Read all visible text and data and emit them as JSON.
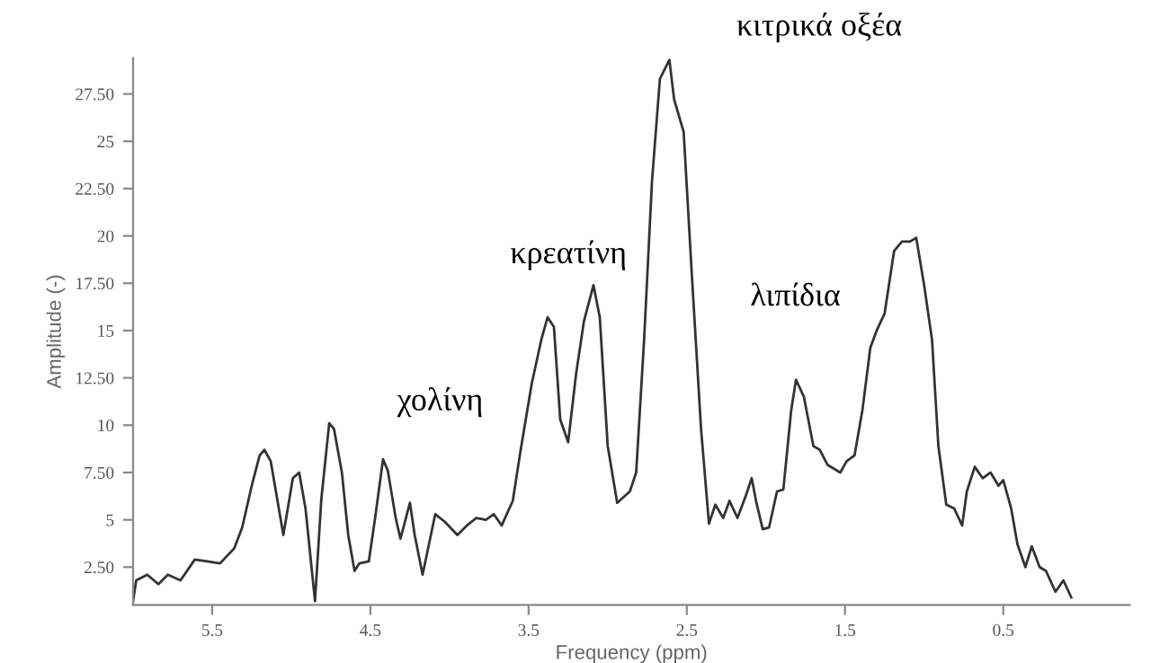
{
  "chart_data": {
    "type": "line",
    "xlabel": "Frequency (ppm)",
    "ylabel": "Amplitude (-)",
    "x": [
      6.0,
      5.98,
      5.91,
      5.84,
      5.78,
      5.7,
      5.61,
      5.53,
      5.45,
      5.36,
      5.31,
      5.25,
      5.2,
      5.17,
      5.13,
      5.05,
      4.99,
      4.95,
      4.91,
      4.85,
      4.81,
      4.76,
      4.73,
      4.68,
      4.64,
      4.6,
      4.57,
      4.51,
      4.47,
      4.42,
      4.39,
      4.34,
      4.31,
      4.25,
      4.22,
      4.17,
      4.13,
      4.09,
      4.03,
      3.95,
      3.89,
      3.83,
      3.77,
      3.72,
      3.67,
      3.6,
      3.55,
      3.48,
      3.42,
      3.38,
      3.34,
      3.3,
      3.25,
      3.2,
      3.15,
      3.09,
      3.05,
      3.0,
      2.94,
      2.86,
      2.82,
      2.77,
      2.72,
      2.67,
      2.61,
      2.58,
      2.52,
      2.47,
      2.41,
      2.36,
      2.32,
      2.27,
      2.23,
      2.18,
      2.13,
      2.09,
      2.06,
      2.02,
      1.98,
      1.93,
      1.89,
      1.84,
      1.81,
      1.76,
      1.7,
      1.66,
      1.61,
      1.53,
      1.49,
      1.44,
      1.39,
      1.34,
      1.3,
      1.25,
      1.19,
      1.14,
      1.09,
      1.05,
      1.0,
      0.95,
      0.91,
      0.86,
      0.81,
      0.76,
      0.73,
      0.68,
      0.63,
      0.58,
      0.53,
      0.5,
      0.45,
      0.41,
      0.36,
      0.32,
      0.27,
      0.23,
      0.17,
      0.12,
      0.07
    ],
    "series": [
      {
        "color": "#333333",
        "values": [
          0.7,
          1.8,
          2.1,
          1.6,
          2.1,
          1.8,
          2.9,
          2.8,
          2.7,
          3.5,
          4.6,
          6.8,
          8.4,
          8.7,
          8.1,
          4.2,
          7.2,
          7.5,
          5.6,
          0.7,
          6.1,
          10.1,
          9.8,
          7.5,
          4.2,
          2.3,
          2.7,
          2.8,
          5.1,
          8.2,
          7.6,
          5.1,
          4.0,
          5.9,
          4.2,
          2.1,
          3.7,
          5.3,
          4.9,
          4.2,
          4.7,
          5.1,
          5.0,
          5.3,
          4.7,
          6.0,
          8.7,
          12.2,
          14.5,
          15.7,
          15.2,
          10.3,
          9.1,
          12.7,
          15.5,
          17.4,
          15.7,
          8.9,
          5.9,
          6.5,
          7.5,
          14.5,
          22.9,
          28.3,
          29.3,
          27.2,
          25.5,
          18.2,
          9.8,
          4.8,
          5.8,
          5.1,
          6.0,
          5.1,
          6.2,
          7.2,
          5.9,
          4.5,
          4.6,
          6.5,
          6.6,
          10.8,
          12.4,
          11.5,
          8.9,
          8.7,
          7.9,
          7.5,
          8.1,
          8.4,
          10.8,
          14.1,
          15.0,
          15.9,
          19.2,
          19.7,
          19.7,
          19.9,
          17.4,
          14.5,
          8.9,
          5.8,
          5.6,
          4.7,
          6.5,
          7.8,
          7.2,
          7.5,
          6.8,
          7.1,
          5.6,
          3.7,
          2.5,
          3.6,
          2.5,
          2.3,
          1.2,
          1.8,
          0.9
        ]
      }
    ],
    "xlim": [
      6.0,
      -0.3
    ],
    "ylim": [
      0.5,
      29.4
    ],
    "xticks": [
      5.5,
      4.5,
      3.5,
      2.5,
      1.5,
      0.5
    ],
    "yticks": [
      {
        "value": 2.5,
        "label": "2.50"
      },
      5,
      {
        "value": 7.5,
        "label": "7.50"
      },
      10,
      {
        "value": 12.5,
        "label": "12.50"
      },
      15,
      {
        "value": 17.5,
        "label": "17.50"
      },
      20,
      {
        "value": 22.5,
        "label": "22.50"
      },
      25,
      {
        "value": 27.5,
        "label": "27.50"
      }
    ],
    "grid": false,
    "marker": "none",
    "line_style": "solid",
    "annotations": [
      {
        "text": "χολίνη",
        "x": 3.38,
        "y": 15.7
      },
      {
        "text": "κρεατίνη",
        "x": 3.09,
        "y": 17.4
      },
      {
        "text": "κιτρικά οξέα",
        "x": 2.61,
        "y": 29.3
      },
      {
        "text": "λιπίδια",
        "x": 1.34,
        "y": 14.1
      }
    ]
  }
}
